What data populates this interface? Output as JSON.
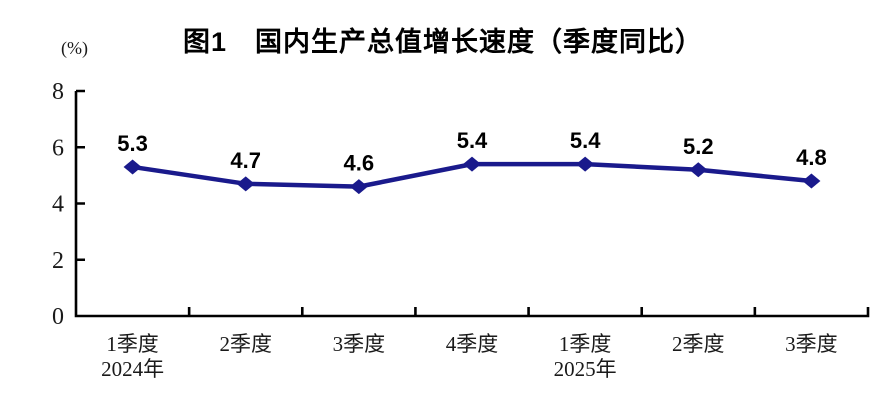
{
  "chart_data": {
    "type": "line",
    "title": "图1　国内生产总值增长速度（季度同比）",
    "unit_label": "(%)",
    "categories": [
      "1季度",
      "2季度",
      "3季度",
      "4季度",
      "1季度",
      "2季度",
      "3季度"
    ],
    "year_rows": [
      {
        "index": 0,
        "label": "2024年"
      },
      {
        "index": 4,
        "label": "2025年"
      }
    ],
    "series": [
      {
        "name": "国内生产总值增长速度（季度同比）",
        "values": [
          5.3,
          4.7,
          4.6,
          5.4,
          5.4,
          5.2,
          4.8
        ]
      }
    ],
    "data_labels": [
      "5.3",
      "4.7",
      "4.6",
      "5.4",
      "5.4",
      "5.2",
      "4.8"
    ],
    "y_ticks": [
      0,
      2,
      4,
      6,
      8
    ],
    "ylim": [
      0,
      8
    ],
    "grid": false,
    "legend": "none",
    "marker": "diamond",
    "colors": {
      "line": "#1a1a8c",
      "marker": "#1a1a8c",
      "axis": "#000000",
      "tick_label": "#1a1a1a",
      "data_label": "#000000",
      "title": "#000000",
      "background": "#ffffff"
    }
  }
}
